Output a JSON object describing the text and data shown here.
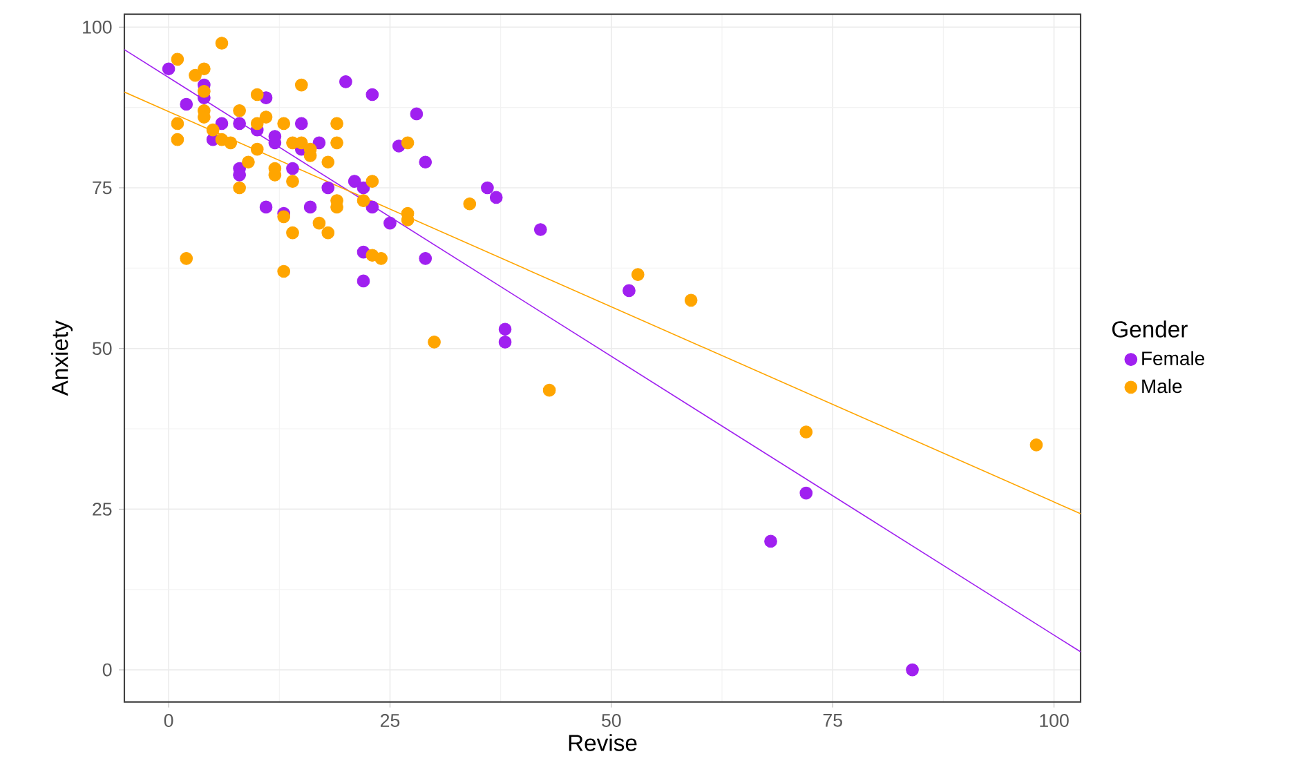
{
  "chart_data": {
    "type": "scatter",
    "xlabel": "Revise",
    "ylabel": "Anxiety",
    "legend_title": "Gender",
    "xlim": [
      -5,
      103
    ],
    "ylim": [
      -5,
      102
    ],
    "xticks": [
      0,
      25,
      50,
      75,
      100
    ],
    "yticks": [
      0,
      25,
      50,
      75,
      100
    ],
    "grid": true,
    "legend": "right",
    "series": [
      {
        "name": "Female",
        "marker": "circle",
        "color": "#a020f0",
        "x": [
          0,
          2,
          4,
          4,
          5,
          6,
          8,
          8,
          8,
          10,
          11,
          11,
          12,
          12,
          13,
          14,
          15,
          15,
          16,
          17,
          18,
          20,
          21,
          22,
          22,
          22,
          23,
          23,
          25,
          26,
          28,
          29,
          29,
          36,
          37,
          38,
          38,
          42,
          52,
          72,
          68,
          84
        ],
        "values": [
          93.5,
          88,
          91,
          89,
          82.5,
          85,
          78,
          77,
          85,
          84,
          72,
          89,
          82,
          83,
          71,
          78,
          85,
          81,
          72,
          82,
          75,
          91.5,
          76,
          75,
          65,
          60.5,
          89.5,
          72,
          69.5,
          81.5,
          86.5,
          79,
          64,
          75,
          73.5,
          53,
          51,
          68.5,
          59,
          27.5,
          20,
          0
        ]
      },
      {
        "name": "Male",
        "marker": "circle",
        "color": "#ffa500",
        "x": [
          1,
          1,
          1,
          2,
          3,
          4,
          4,
          4,
          4,
          5,
          6,
          6,
          7,
          8,
          8,
          9,
          10,
          10,
          10,
          11,
          12,
          12,
          13,
          13,
          13,
          14,
          14,
          14,
          15,
          15,
          16,
          16,
          17,
          18,
          18,
          19,
          19,
          19,
          19,
          22,
          23,
          23,
          24,
          27,
          27,
          27,
          30,
          34,
          43,
          53,
          59,
          72,
          98
        ],
        "values": [
          95,
          85,
          82.5,
          64,
          92.5,
          93.5,
          90,
          87,
          86,
          84,
          97.5,
          82.5,
          82,
          87,
          75,
          79,
          89.5,
          85,
          81,
          86,
          78,
          77,
          70.5,
          62,
          85,
          82,
          76,
          68,
          91,
          82,
          80,
          81,
          69.5,
          68,
          79,
          85,
          82,
          73,
          72,
          73,
          76,
          64.5,
          64,
          82,
          71,
          70,
          51,
          72.5,
          43.5,
          61.5,
          57.5,
          37,
          35
        ]
      },
      {
        "type": "line",
        "marker": "none",
        "color": "#a020f0",
        "x": [
          -5,
          103
        ],
        "values": [
          96.5,
          2.8
        ]
      },
      {
        "type": "line",
        "marker": "none",
        "color": "#ffa500",
        "x": [
          -5,
          103
        ],
        "values": [
          89.9,
          24.3
        ]
      }
    ]
  }
}
